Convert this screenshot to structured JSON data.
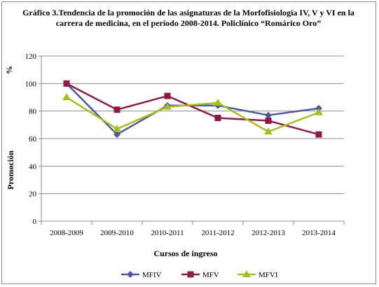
{
  "chart_data": {
    "type": "line",
    "title_lines": [
      "Gráfico 3.Tendencia de la promoción de las asignaturas de la Morfofisiología IV, V y VI en la",
      "carrera de medicina, en el período  2008-2014. Policlínico “Romárico Oro”"
    ],
    "categories": [
      "2008-2009",
      "2009-2010",
      "2010-2011",
      "2011-2012",
      "2012-2013",
      "2013-2014"
    ],
    "series": [
      {
        "name": "MFIV",
        "color": "#4a5b9c",
        "marker": "diamond",
        "values": [
          100,
          63,
          84,
          84,
          77,
          82
        ]
      },
      {
        "name": "MFV",
        "color": "#8b1a4a",
        "marker": "square",
        "values": [
          100,
          81,
          91,
          75,
          73,
          63
        ]
      },
      {
        "name": "MFVI",
        "color": "#a6bf1f",
        "marker": "triangle",
        "values": [
          90,
          67,
          83,
          86,
          65,
          79
        ]
      }
    ],
    "y_unit_label": "%",
    "ylabel": "Promoción",
    "xlabel": "Cursos de ingreso",
    "ylim": [
      0,
      120
    ],
    "yticks": [
      "0",
      "20",
      "40",
      "60",
      "80",
      "100",
      "120"
    ],
    "grid": true,
    "legend_position": "bottom"
  }
}
